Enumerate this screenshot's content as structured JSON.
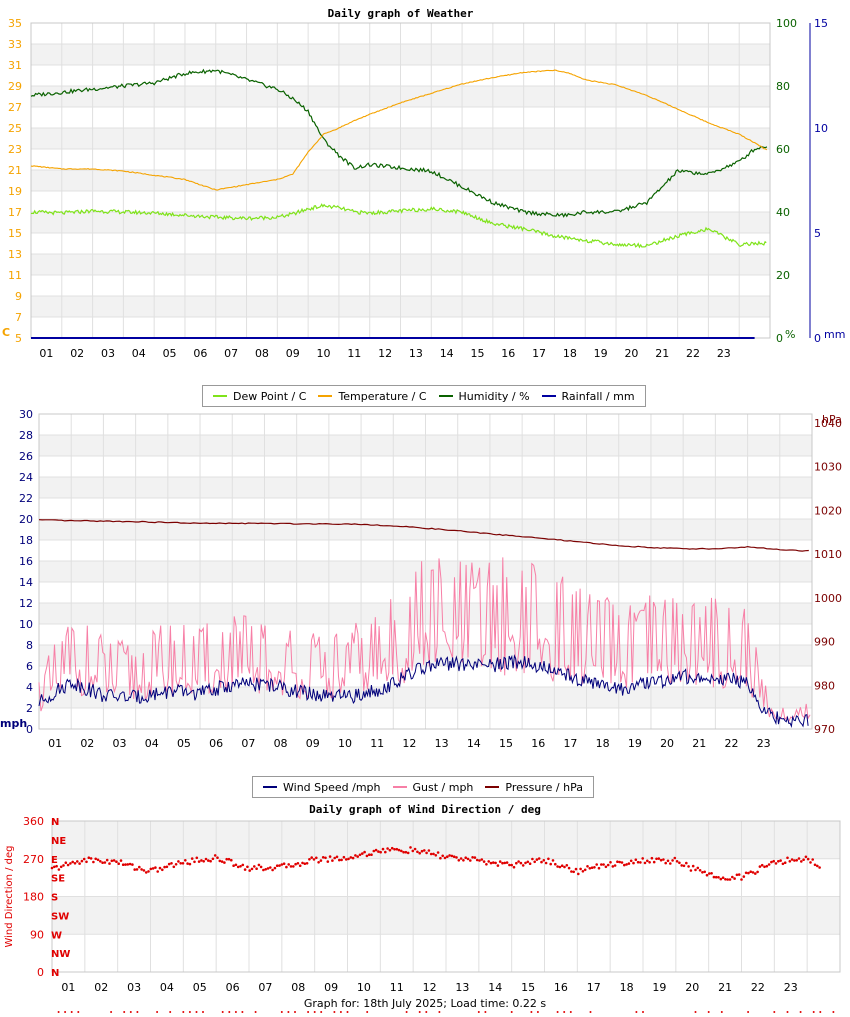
{
  "colors": {
    "dew": "#7fe31a",
    "temp": "#f5a300",
    "hum": "#0a6200",
    "rain": "#0000a0",
    "wind": "#00007a",
    "gust": "#f77fa6",
    "pres": "#7b0000",
    "dir": "#e00000",
    "grid": "#e0e0e0",
    "band": "#f2f2f2"
  },
  "legend1": [
    {
      "label": "Dew Point / C",
      "color": "#7fe31a"
    },
    {
      "label": "Temperature / C",
      "color": "#f5a300"
    },
    {
      "label": "Humidity / %",
      "color": "#0a6200"
    },
    {
      "label": "Rainfall / mm",
      "color": "#0000a0"
    }
  ],
  "legend2": [
    {
      "label": "Wind Speed /mph",
      "color": "#00007a"
    },
    {
      "label": "Gust / mph",
      "color": "#f77fa6"
    },
    {
      "label": "Pressure / hPa",
      "color": "#7b0000"
    }
  ],
  "footer": "Graph for: 18th July 2025; Load time: 0.22 s",
  "chart_data": [
    {
      "type": "line",
      "title": "Daily graph of Weather",
      "x_ticks": [
        "01",
        "02",
        "03",
        "04",
        "05",
        "06",
        "07",
        "08",
        "09",
        "10",
        "11",
        "12",
        "13",
        "14",
        "15",
        "16",
        "17",
        "18",
        "19",
        "20",
        "21",
        "22",
        "23"
      ],
      "axes": {
        "left": {
          "label": "C",
          "ticks": [
            5,
            7,
            9,
            11,
            13,
            15,
            17,
            19,
            21,
            23,
            25,
            27,
            29,
            31,
            33,
            35
          ],
          "ylim": [
            5,
            35
          ]
        },
        "right1": {
          "label": "%",
          "ticks": [
            0,
            20,
            40,
            60,
            80,
            100
          ],
          "ylim": [
            0,
            100
          ]
        },
        "right2": {
          "label": "mm",
          "ticks": [
            0,
            5,
            10,
            15
          ],
          "ylim": [
            0,
            15
          ]
        }
      },
      "x": [
        0,
        1,
        2,
        3,
        4,
        5,
        6,
        7,
        8,
        8.5,
        9,
        9.5,
        10,
        10.5,
        11,
        12,
        13,
        14,
        15,
        16,
        17,
        17.5,
        18,
        19,
        20,
        21,
        22,
        23,
        23.5,
        23.9
      ],
      "series": [
        {
          "name": "Temperature / C",
          "color": "temp",
          "axis": "left",
          "values": [
            21.4,
            21.1,
            21.1,
            20.9,
            20.5,
            20.1,
            19.1,
            19.6,
            20.1,
            20.6,
            22.7,
            24.4,
            25.0,
            25.7,
            26.3,
            27.4,
            28.3,
            29.2,
            29.8,
            30.3,
            30.5,
            30.2,
            29.6,
            29.1,
            28.1,
            26.8,
            25.5,
            24.4,
            23.6,
            22.9
          ]
        },
        {
          "name": "Dew Point / C",
          "color": "dew",
          "axis": "left",
          "values": [
            17.0,
            16.9,
            17.1,
            17.0,
            16.9,
            16.7,
            16.5,
            16.4,
            16.5,
            16.8,
            17.3,
            17.6,
            17.4,
            17.0,
            16.9,
            17.1,
            17.3,
            17.0,
            15.9,
            15.4,
            14.7,
            14.5,
            14.3,
            13.9,
            13.8,
            14.7,
            15.4,
            13.9,
            14.0,
            14.0
          ]
        },
        {
          "name": "Humidity / %",
          "color": "hum",
          "axis": "right1",
          "values": [
            77,
            78,
            79,
            80,
            81,
            84,
            85,
            82,
            79,
            76,
            72,
            63,
            58,
            54,
            55,
            54,
            53,
            48,
            43,
            40,
            39,
            39,
            40,
            40,
            43,
            53,
            52,
            56,
            60,
            61
          ]
        },
        {
          "name": "Rainfall / mm",
          "color": "rain",
          "axis": "right2",
          "values": [
            0,
            0,
            0,
            0,
            0,
            0,
            0,
            0,
            0,
            0,
            0,
            0,
            0,
            0,
            0,
            0,
            0,
            0,
            0,
            0,
            0,
            0,
            0,
            0,
            0,
            0,
            0,
            0,
            0,
            0
          ]
        }
      ]
    },
    {
      "type": "line",
      "title": "",
      "x_ticks": [
        "01",
        "02",
        "03",
        "04",
        "05",
        "06",
        "07",
        "08",
        "09",
        "10",
        "11",
        "12",
        "13",
        "14",
        "15",
        "16",
        "17",
        "18",
        "19",
        "20",
        "21",
        "22",
        "23"
      ],
      "axes": {
        "left": {
          "label": "mph",
          "ticks": [
            0,
            2,
            4,
            6,
            8,
            10,
            12,
            14,
            16,
            18,
            20,
            22,
            24,
            26,
            28,
            30
          ],
          "ylim": [
            0,
            30
          ]
        },
        "right": {
          "label": "hPa",
          "ticks": [
            970,
            980,
            990,
            1000,
            1010,
            1020,
            1030,
            1040
          ],
          "ylim": [
            970,
            1042
          ]
        }
      },
      "x": [
        0,
        1,
        2,
        3,
        4,
        5,
        6,
        7,
        8,
        9,
        10,
        11,
        12,
        13,
        14,
        15,
        16,
        17,
        18,
        19,
        20,
        21,
        22,
        22.5,
        23,
        23.5,
        23.9
      ],
      "series": [
        {
          "name": "Wind Speed /mph",
          "color": "wind",
          "axis": "left",
          "values": [
            2.5,
            4.5,
            3.2,
            3.0,
            3.6,
            3.4,
            4.2,
            4.3,
            3.6,
            3.0,
            3.2,
            4.3,
            6.0,
            6.2,
            6.0,
            6.5,
            5.5,
            4.6,
            3.7,
            4.4,
            5.0,
            4.9,
            4.5,
            1.6,
            1.0,
            0.6,
            0.8
          ]
        },
        {
          "name": "Gust / mph",
          "color": "gust",
          "axis": "left",
          "values": [
            3.5,
            7.5,
            6.0,
            5.5,
            7.0,
            6.5,
            7.5,
            7.0,
            6.5,
            6.0,
            7.0,
            8.5,
            11.5,
            11.0,
            11.0,
            11.5,
            10.0,
            9.0,
            8.0,
            8.5,
            9.0,
            8.5,
            8.0,
            3.0,
            1.5,
            1.5,
            2.0
          ]
        },
        {
          "name": "Pressure / hPa",
          "color": "pres",
          "axis": "right",
          "values": [
            1017.8,
            1017.6,
            1017.5,
            1017.4,
            1017.2,
            1017.0,
            1017.0,
            1017.0,
            1016.9,
            1016.9,
            1016.8,
            1016.4,
            1015.9,
            1015.3,
            1014.6,
            1014.0,
            1013.3,
            1012.6,
            1011.9,
            1011.5,
            1011.2,
            1011.2,
            1011.6,
            1011.3,
            1011.0,
            1010.8,
            1010.7
          ]
        }
      ]
    },
    {
      "type": "scatter",
      "title": "Daily graph of Wind Direction / deg",
      "x_ticks": [
        "01",
        "02",
        "03",
        "04",
        "05",
        "06",
        "07",
        "08",
        "09",
        "10",
        "11",
        "12",
        "13",
        "14",
        "15",
        "16",
        "17",
        "18",
        "19",
        "20",
        "21",
        "22",
        "23"
      ],
      "axes": {
        "left": {
          "label": "Wind Direction / deg",
          "ticks": [
            0,
            90,
            180,
            270,
            360
          ],
          "ylim": [
            0,
            360
          ]
        },
        "compass": [
          "N",
          "NE",
          "E",
          "SE",
          "S",
          "SW",
          "W",
          "NW",
          "N"
        ]
      },
      "x": [
        0,
        1,
        2,
        3,
        4,
        5,
        6,
        7,
        8,
        9,
        10,
        11,
        12,
        13,
        14,
        15,
        16,
        17,
        18,
        19,
        20,
        21,
        22,
        23,
        23.4
      ],
      "series": [
        {
          "name": "Wind Direction / deg",
          "color": "dir",
          "values": [
            245,
            268,
            262,
            240,
            262,
            272,
            248,
            250,
            268,
            272,
            290,
            290,
            275,
            265,
            255,
            268,
            240,
            258,
            265,
            265,
            230,
            225,
            262,
            270,
            255
          ]
        }
      ]
    }
  ]
}
